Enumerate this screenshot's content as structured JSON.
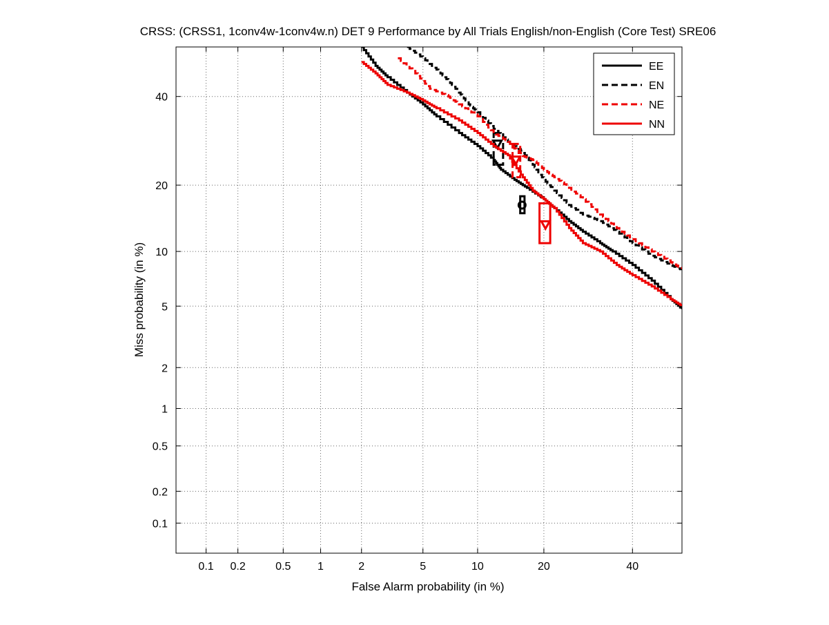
{
  "chart_data": {
    "type": "line",
    "title": "CRSS: (CRSS1, 1conv4w-1conv4w.n) DET 9 Performance by All Trials English/non-English (Core Test) SRE06",
    "xlabel": "False Alarm probability (in %)",
    "ylabel": "Miss probability (in %)",
    "x_scale": "probit",
    "y_scale": "probit",
    "xlim": [
      0.05,
      53
    ],
    "ylim": [
      0.05,
      53
    ],
    "grid": true,
    "legend_position": "top-right",
    "x_ticks": [
      {
        "value": 0.1,
        "label": "0.1"
      },
      {
        "value": 0.2,
        "label": "0.2"
      },
      {
        "value": 0.5,
        "label": "0.5"
      },
      {
        "value": 1,
        "label": "1"
      },
      {
        "value": 2,
        "label": "2"
      },
      {
        "value": 5,
        "label": "5"
      },
      {
        "value": 10,
        "label": "10"
      },
      {
        "value": 20,
        "label": "20"
      },
      {
        "value": 40,
        "label": "40"
      }
    ],
    "y_ticks": [
      {
        "value": 0.1,
        "label": "0.1"
      },
      {
        "value": 0.2,
        "label": "0.2"
      },
      {
        "value": 0.5,
        "label": "0.5"
      },
      {
        "value": 1,
        "label": "1"
      },
      {
        "value": 2,
        "label": "2"
      },
      {
        "value": 5,
        "label": "5"
      },
      {
        "value": 10,
        "label": "10"
      },
      {
        "value": 20,
        "label": "20"
      },
      {
        "value": 40,
        "label": "40"
      }
    ],
    "series": [
      {
        "name": "EE",
        "color": "#000000",
        "dash": "solid",
        "points": [
          [
            2.0,
            53
          ],
          [
            2.5,
            48
          ],
          [
            3.0,
            45
          ],
          [
            4.0,
            41
          ],
          [
            5.0,
            38
          ],
          [
            6.0,
            35
          ],
          [
            8.0,
            31
          ],
          [
            10.0,
            28
          ],
          [
            12.0,
            25
          ],
          [
            13.0,
            23
          ],
          [
            15.0,
            21
          ],
          [
            17.0,
            19.5
          ],
          [
            20.0,
            17.5
          ],
          [
            22.0,
            16
          ],
          [
            25.0,
            14
          ],
          [
            28.0,
            12.5
          ],
          [
            32.0,
            11
          ],
          [
            35.0,
            10
          ],
          [
            40.0,
            8.5
          ],
          [
            45.0,
            7
          ],
          [
            50.0,
            5.5
          ],
          [
            53.0,
            4.8
          ]
        ],
        "decision_point": {
          "x": 16.2,
          "y": 16.5,
          "marker": "circle"
        },
        "interval": {
          "x_min": 15.9,
          "x_max": 16.6,
          "y_min": 15.2,
          "y_max": 18.0
        }
      },
      {
        "name": "EN",
        "color": "#000000",
        "dash": "dashed",
        "points": [
          [
            4.0,
            53
          ],
          [
            5.0,
            50
          ],
          [
            6.0,
            47
          ],
          [
            7.0,
            44
          ],
          [
            8.0,
            41
          ],
          [
            9.0,
            38
          ],
          [
            10.0,
            36
          ],
          [
            12.0,
            32
          ],
          [
            14.0,
            29
          ],
          [
            16.0,
            27
          ],
          [
            18.0,
            24
          ],
          [
            20.0,
            21
          ],
          [
            22.0,
            19
          ],
          [
            25.0,
            16.5
          ],
          [
            28.0,
            15
          ],
          [
            32.0,
            14
          ],
          [
            36.0,
            12.5
          ],
          [
            40.0,
            11
          ],
          [
            45.0,
            9.5
          ],
          [
            50.0,
            8.5
          ],
          [
            53.0,
            8
          ]
        ],
        "decision_point": {
          "x": 12.5,
          "y": 28.5,
          "marker": "triangle-down"
        },
        "interval": {
          "x_min": 12.0,
          "x_max": 13.3,
          "y_min": 24.0,
          "y_max": 31.0
        }
      },
      {
        "name": "NE",
        "color": "#ee0000",
        "dash": "dashed",
        "points": [
          [
            3.5,
            50
          ],
          [
            4.5,
            46
          ],
          [
            5.5,
            42
          ],
          [
            7.0,
            40
          ],
          [
            8.0,
            38
          ],
          [
            10.0,
            35
          ],
          [
            12.0,
            31
          ],
          [
            14.0,
            29
          ],
          [
            16.0,
            26
          ],
          [
            18.0,
            25
          ],
          [
            20.0,
            23
          ],
          [
            22.0,
            21.5
          ],
          [
            25.0,
            19.5
          ],
          [
            28.0,
            17.5
          ],
          [
            32.0,
            15
          ],
          [
            36.0,
            13
          ],
          [
            40.0,
            11.5
          ],
          [
            45.0,
            10
          ],
          [
            50.0,
            8.8
          ],
          [
            53.0,
            8.1
          ]
        ],
        "decision_point": {
          "x": 15.2,
          "y": 25.0,
          "marker": "triangle-down"
        },
        "interval": {
          "x_min": 14.7,
          "x_max": 15.9,
          "y_min": 21.5,
          "y_max": 28.5
        }
      },
      {
        "name": "NN",
        "color": "#ee0000",
        "dash": "solid",
        "points": [
          [
            2.0,
            49
          ],
          [
            2.5,
            46
          ],
          [
            3.0,
            43
          ],
          [
            4.0,
            41
          ],
          [
            5.0,
            39
          ],
          [
            6.0,
            37
          ],
          [
            8.0,
            34
          ],
          [
            10.0,
            31
          ],
          [
            12.0,
            28
          ],
          [
            14.0,
            26
          ],
          [
            16.0,
            22
          ],
          [
            18.0,
            19
          ],
          [
            20.0,
            17.5
          ],
          [
            22.0,
            16
          ],
          [
            25.0,
            13
          ],
          [
            28.0,
            11
          ],
          [
            32.0,
            10
          ],
          [
            36.0,
            8.5
          ],
          [
            40.0,
            7.5
          ],
          [
            45.0,
            6.5
          ],
          [
            50.0,
            5.5
          ],
          [
            53.0,
            5
          ]
        ],
        "decision_point": {
          "x": 20.3,
          "y": 13.5,
          "marker": "triangle-down"
        },
        "interval": {
          "x_min": 19.2,
          "x_max": 21.2,
          "y_min": 11.0,
          "y_max": 16.8
        }
      }
    ]
  }
}
